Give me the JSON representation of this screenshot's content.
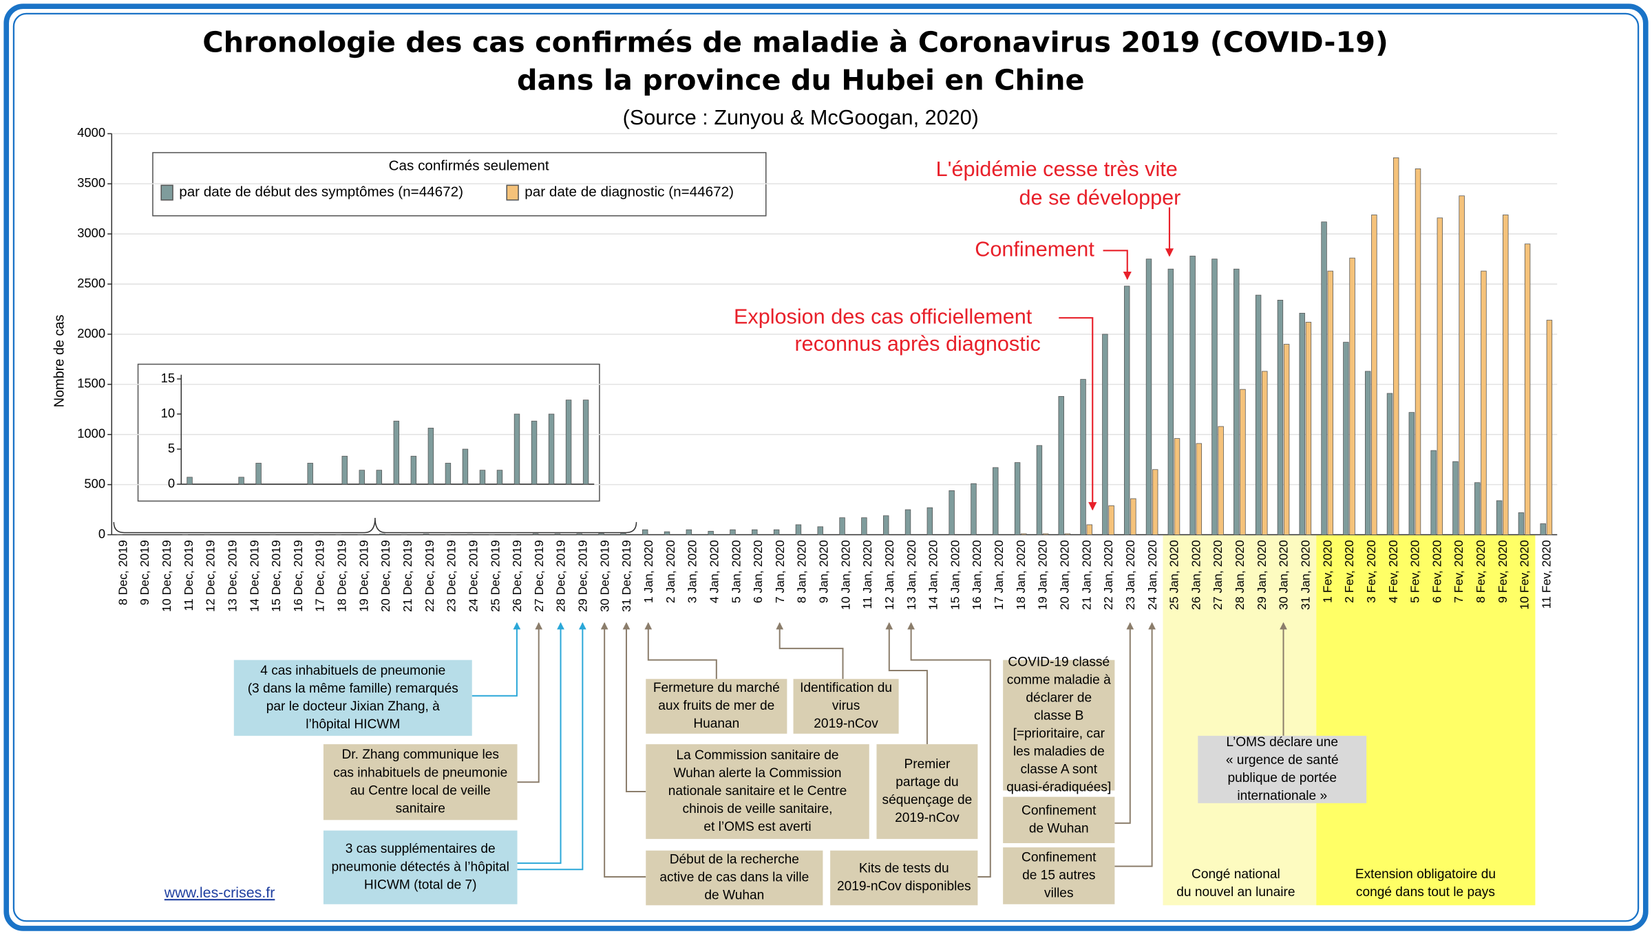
{
  "chart_data": {
    "type": "bar",
    "title": [
      "Chronologie des cas confirmés de maladie à Coronavirus 2019 (COVID-19)",
      "dans la province du Hubei en Chine"
    ],
    "subtitle": "(Source : Zunyou & McGoogan, 2020)",
    "y_label": "Nombre de cas",
    "legend_title": "Cas confirmés seulement",
    "categories": [
      "8 Dec, 2019",
      "9 Dec, 2019",
      "10 Dec, 2019",
      "11 Dec, 2019",
      "12 Dec, 2019",
      "13 Dec, 2019",
      "14 Dec, 2019",
      "15 Dec, 2019",
      "16 Dec, 2019",
      "17 Dec, 2019",
      "18 Dec, 2019",
      "19 Dec, 2019",
      "20 Dec, 2019",
      "21 Dec, 2019",
      "22 Dec, 2019",
      "23 Dec, 2019",
      "24 Dec, 2019",
      "25 Dec, 2019",
      "26 Dec, 2019",
      "27 Dec, 2019",
      "28 Dec, 2019",
      "29 Dec, 2019",
      "30 Dec, 2019",
      "31 Dec, 2019",
      "1 Jan, 2020",
      "2 Jan, 2020",
      "3 Jan, 2020",
      "4 Jan, 2020",
      "5 Jan, 2020",
      "6 Jan, 2020",
      "7 Jan, 2020",
      "8 Jan, 2020",
      "9 Jan, 2020",
      "10 Jan, 2020",
      "11 Jan, 2020",
      "12 Jan, 2020",
      "13 Jan, 2020",
      "14 Jan, 2020",
      "15 Jan, 2020",
      "16 Jan, 2020",
      "17 Jan, 2020",
      "18 Jan, 2020",
      "19 Jan, 2020",
      "20 Jan, 2020",
      "21 Jan, 2020",
      "22 Jan, 2020",
      "23 Jan, 2020",
      "24 Jan, 2020",
      "25 Jan, 2020",
      "26 Jan, 2020",
      "27 Jan, 2020",
      "28 Jan, 2020",
      "29 Jan, 2020",
      "30 Jan, 2020",
      "31 Jan, 2020",
      "1 Fev, 2020",
      "2 Fev, 2020",
      "3 Fev, 2020",
      "4 Fev, 2020",
      "5 Fev, 2020",
      "6 Fev, 2020",
      "7 Fev, 2020",
      "8 Fev, 2020",
      "9 Fev, 2020",
      "10 Fev, 2020",
      "11 Fev, 2020"
    ],
    "series": [
      {
        "name": "par date de début des symptômes (n=44672)",
        "color": "#7f9c9c",
        "values": [
          1,
          0,
          0,
          1,
          3,
          0,
          0,
          3,
          0,
          4,
          2,
          2,
          9,
          4,
          8,
          3,
          5,
          2,
          2,
          10,
          9,
          10,
          12,
          12,
          50,
          30,
          50,
          35,
          50,
          50,
          50,
          100,
          80,
          170,
          170,
          190,
          250,
          270,
          440,
          510,
          670,
          720,
          890,
          1380,
          1550,
          2000,
          2480,
          2750,
          2650,
          2780,
          2750,
          2650,
          2390,
          2340,
          2210,
          3120,
          1920,
          1630,
          1410,
          1220,
          840,
          730,
          520,
          340,
          220,
          110
        ]
      },
      {
        "name": "par date de diagnostic (n=44672)",
        "color": "#f5c27a",
        "values": [
          0,
          0,
          0,
          0,
          0,
          0,
          0,
          0,
          0,
          0,
          0,
          0,
          0,
          0,
          0,
          0,
          0,
          0,
          0,
          0,
          0,
          0,
          0,
          0,
          0,
          0,
          0,
          0,
          0,
          0,
          0,
          0,
          0,
          0,
          0,
          0,
          0,
          0,
          0,
          0,
          0,
          10,
          10,
          10,
          100,
          290,
          360,
          650,
          960,
          910,
          1080,
          1450,
          1630,
          1900,
          2120,
          2630,
          2760,
          3190,
          3760,
          3650,
          3160,
          3380,
          2630,
          3190,
          2900,
          2140
        ]
      }
    ],
    "ylim": [
      0,
      4000
    ],
    "yticks": [
      0,
      500,
      1000,
      1500,
      2000,
      2500,
      3000,
      3500,
      4000
    ],
    "grid": true,
    "inset": {
      "ylim": [
        0,
        15
      ],
      "yticks": [
        0,
        5,
        10,
        15
      ]
    },
    "annotations": [
      {
        "lines": [
          "L'épidémie cesse très vite",
          "de se développer"
        ]
      },
      {
        "lines": [
          "Confinement"
        ]
      },
      {
        "lines": [
          "Explosion des cas officiellement",
          "reconnus après diagnostic"
        ]
      }
    ],
    "events": [
      {
        "lines": [
          "4 cas inhabituels de pneumonie",
          "(3 dans la même famille) remarqués",
          "par le docteur Jixian Zhang, à",
          "l’hôpital HICWM"
        ]
      },
      {
        "lines": [
          "Dr. Zhang communique les",
          "cas inhabituels de pneumonie",
          "au Centre local de veille",
          "sanitaire"
        ]
      },
      {
        "lines": [
          "3 cas supplémentaires de",
          "pneumonie détectés à l’hôpital",
          "HICWM (total de 7)"
        ]
      },
      {
        "lines": [
          "Début de la recherche",
          "active de cas dans la ville",
          "de Wuhan"
        ]
      },
      {
        "lines": [
          "La Commission sanitaire de",
          "Wuhan alerte la Commission",
          "nationale sanitaire et le Centre",
          "chinois de veille sanitaire,",
          "et l’OMS est averti"
        ]
      },
      {
        "lines": [
          "Fermeture du marché",
          "aux fruits de mer de",
          "Huanan"
        ]
      },
      {
        "lines": [
          "Identification du",
          "virus",
          "2019-nCov"
        ]
      },
      {
        "lines": [
          "Premier",
          "partage du",
          "séquençage de",
          "2019-nCov"
        ]
      },
      {
        "lines": [
          "Kits de tests du",
          "2019-nCov disponibles"
        ]
      },
      {
        "lines": [
          "COVID-19 classé",
          "comme maladie à",
          "déclarer de",
          "classe B",
          "[=prioritaire, car",
          "les maladies de",
          "classe A sont",
          "quasi-éradiquées]"
        ]
      },
      {
        "lines": [
          "Confinement",
          "de Wuhan"
        ]
      },
      {
        "lines": [
          "Confinement",
          "de 15 autres",
          "villes"
        ]
      },
      {
        "lines": [
          "L’OMS déclare une",
          "« urgence de santé",
          "publique de portée",
          "internationale »"
        ]
      }
    ],
    "periods": [
      {
        "lines": [
          "Congé national",
          "du nouvel an lunaire"
        ]
      },
      {
        "lines": [
          "Extension obligatoire du",
          "congé dans tout le pays"
        ]
      }
    ],
    "footer": "www.les-crises.fr"
  }
}
